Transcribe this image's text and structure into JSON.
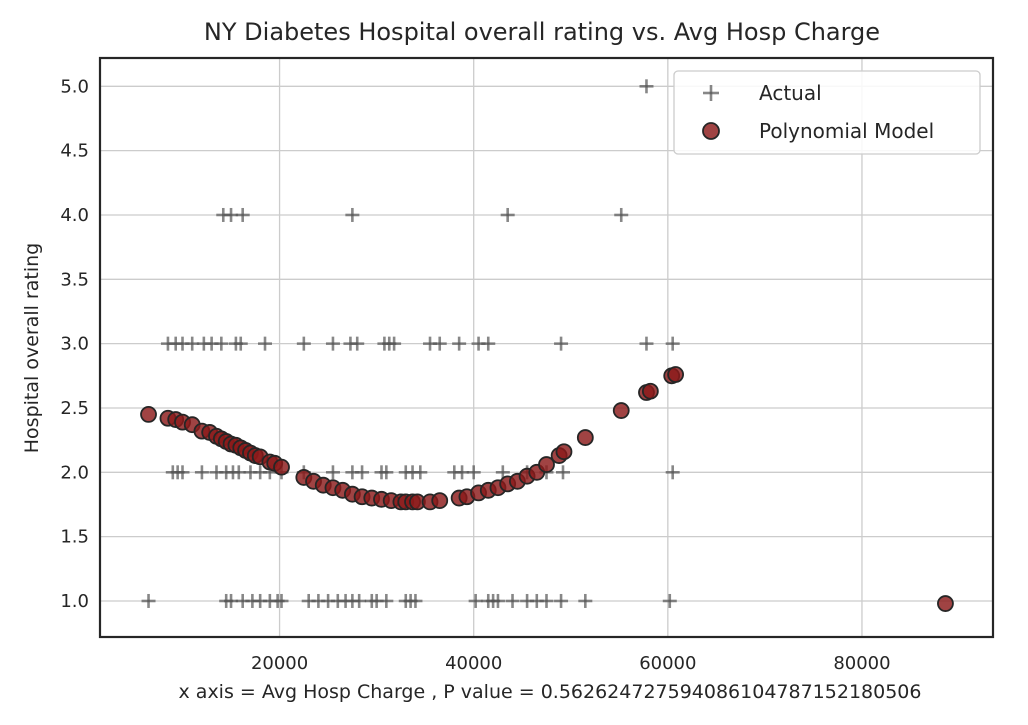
{
  "chart_data": {
    "type": "scatter",
    "title": "NY Diabetes Hospital overall rating vs. Avg Hosp Charge",
    "xlabel": "x axis = Avg Hosp Charge , P value = 0.5626247275940861047871521805­06",
    "ylabel": "Hospital overall rating",
    "xlim": [
      1500,
      93500
    ],
    "ylim": [
      0.72,
      5.22
    ],
    "xticks": [
      20000,
      40000,
      60000,
      80000
    ],
    "yticks": [
      1.0,
      1.5,
      2.0,
      2.5,
      3.0,
      3.5,
      4.0,
      4.5,
      5.0
    ],
    "ytick_labels": [
      "1.0",
      "1.5",
      "2.0",
      "2.5",
      "3.0",
      "3.5",
      "4.0",
      "4.5",
      "5.0"
    ],
    "grid": true,
    "legend_position": "top-right",
    "series": [
      {
        "name": "Actual",
        "marker": "plus",
        "color": "#555555",
        "points": [
          [
            6500,
            1
          ],
          [
            14500,
            1
          ],
          [
            15000,
            1
          ],
          [
            16200,
            1
          ],
          [
            17200,
            1
          ],
          [
            18000,
            1
          ],
          [
            19000,
            1
          ],
          [
            19800,
            1
          ],
          [
            20200,
            1
          ],
          [
            23000,
            1
          ],
          [
            24000,
            1
          ],
          [
            25000,
            1
          ],
          [
            26000,
            1
          ],
          [
            26800,
            1
          ],
          [
            27500,
            1
          ],
          [
            28200,
            1
          ],
          [
            29500,
            1
          ],
          [
            30000,
            1
          ],
          [
            31000,
            1
          ],
          [
            33000,
            1
          ],
          [
            33500,
            1
          ],
          [
            34000,
            1
          ],
          [
            40200,
            1
          ],
          [
            41500,
            1
          ],
          [
            42000,
            1
          ],
          [
            42500,
            1
          ],
          [
            44000,
            1
          ],
          [
            45500,
            1
          ],
          [
            46500,
            1
          ],
          [
            47500,
            1
          ],
          [
            49000,
            1
          ],
          [
            51500,
            1
          ],
          [
            60200,
            1
          ],
          [
            9000,
            2
          ],
          [
            9500,
            2
          ],
          [
            10000,
            2
          ],
          [
            12000,
            2
          ],
          [
            13500,
            2
          ],
          [
            14500,
            2
          ],
          [
            15200,
            2
          ],
          [
            15800,
            2
          ],
          [
            17000,
            2
          ],
          [
            18000,
            2
          ],
          [
            19000,
            2
          ],
          [
            20200,
            2
          ],
          [
            22500,
            2
          ],
          [
            25500,
            2
          ],
          [
            27500,
            2
          ],
          [
            28500,
            2
          ],
          [
            30500,
            2
          ],
          [
            31000,
            2
          ],
          [
            33000,
            2
          ],
          [
            33700,
            2
          ],
          [
            34500,
            2
          ],
          [
            38000,
            2
          ],
          [
            38800,
            2
          ],
          [
            40000,
            2
          ],
          [
            43000,
            2
          ],
          [
            45500,
            2
          ],
          [
            47500,
            2
          ],
          [
            49200,
            2
          ],
          [
            60500,
            2
          ],
          [
            8500,
            3
          ],
          [
            9300,
            3
          ],
          [
            10000,
            3
          ],
          [
            11000,
            3
          ],
          [
            12200,
            3
          ],
          [
            13000,
            3
          ],
          [
            14000,
            3
          ],
          [
            15500,
            3
          ],
          [
            16000,
            3
          ],
          [
            18500,
            3
          ],
          [
            22500,
            3
          ],
          [
            25500,
            3
          ],
          [
            27300,
            3
          ],
          [
            28000,
            3
          ],
          [
            30800,
            3
          ],
          [
            31300,
            3
          ],
          [
            31800,
            3
          ],
          [
            35500,
            3
          ],
          [
            36500,
            3
          ],
          [
            38500,
            3
          ],
          [
            40500,
            3
          ],
          [
            41500,
            3
          ],
          [
            49000,
            3
          ],
          [
            57800,
            3
          ],
          [
            60500,
            3
          ],
          [
            14200,
            4
          ],
          [
            15000,
            4
          ],
          [
            16200,
            4
          ],
          [
            27500,
            4
          ],
          [
            43500,
            4
          ],
          [
            55200,
            4
          ],
          [
            57800,
            5
          ]
        ]
      },
      {
        "name": "Polynomial Model",
        "marker": "circle",
        "color": "#8b1a1a",
        "points": [
          [
            6500,
            2.45
          ],
          [
            8500,
            2.42
          ],
          [
            9300,
            2.41
          ],
          [
            10000,
            2.39
          ],
          [
            11000,
            2.37
          ],
          [
            12000,
            2.32
          ],
          [
            12800,
            2.31
          ],
          [
            13500,
            2.28
          ],
          [
            14000,
            2.26
          ],
          [
            14500,
            2.24
          ],
          [
            15000,
            2.22
          ],
          [
            15500,
            2.21
          ],
          [
            16000,
            2.19
          ],
          [
            16500,
            2.17
          ],
          [
            17000,
            2.15
          ],
          [
            17500,
            2.13
          ],
          [
            18000,
            2.12
          ],
          [
            19000,
            2.08
          ],
          [
            19500,
            2.07
          ],
          [
            20200,
            2.04
          ],
          [
            22500,
            1.96
          ],
          [
            23500,
            1.93
          ],
          [
            24500,
            1.9
          ],
          [
            25500,
            1.88
          ],
          [
            26500,
            1.86
          ],
          [
            27500,
            1.83
          ],
          [
            28500,
            1.81
          ],
          [
            29500,
            1.8
          ],
          [
            30500,
            1.79
          ],
          [
            31500,
            1.78
          ],
          [
            32500,
            1.77
          ],
          [
            33000,
            1.77
          ],
          [
            33700,
            1.77
          ],
          [
            34200,
            1.77
          ],
          [
            35500,
            1.77
          ],
          [
            36500,
            1.78
          ],
          [
            38500,
            1.8
          ],
          [
            39300,
            1.81
          ],
          [
            40500,
            1.84
          ],
          [
            41500,
            1.86
          ],
          [
            42500,
            1.88
          ],
          [
            43500,
            1.91
          ],
          [
            44500,
            1.93
          ],
          [
            45500,
            1.97
          ],
          [
            46500,
            2.0
          ],
          [
            47500,
            2.06
          ],
          [
            48800,
            2.13
          ],
          [
            49300,
            2.16
          ],
          [
            51500,
            2.27
          ],
          [
            55200,
            2.48
          ],
          [
            57800,
            2.62
          ],
          [
            58200,
            2.63
          ],
          [
            60400,
            2.75
          ],
          [
            60800,
            2.76
          ],
          [
            88600,
            0.98
          ]
        ]
      }
    ]
  }
}
